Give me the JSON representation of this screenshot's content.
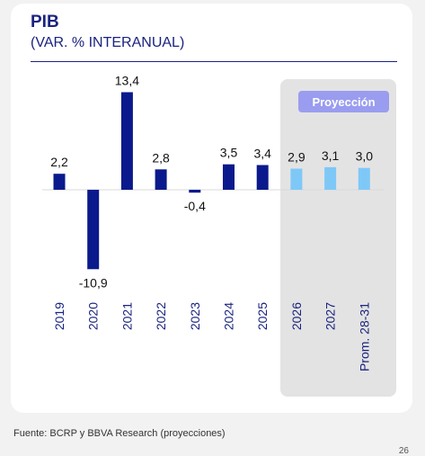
{
  "header": {
    "title": "PIB",
    "subtitle": "(VAR. % INTERANUAL)"
  },
  "projection_label": "Proyección",
  "footer": {
    "source": "Fuente: BCRP y BBVA Research (proyecciones)",
    "page_number": "26"
  },
  "colors": {
    "actual": "#0a1a8c",
    "projection": "#7ec8f8",
    "projection_band": "#e3e3e3",
    "badge": "#9a9cf0",
    "text": "#1a237e"
  },
  "chart_data": {
    "type": "bar",
    "title": "PIB",
    "subtitle": "(VAR. % INTERANUAL)",
    "categories": [
      "2019",
      "2020",
      "2021",
      "2022",
      "2023",
      "2024",
      "2025",
      "2026",
      "2027",
      "Prom. 28-31"
    ],
    "values": [
      2.2,
      -10.9,
      13.4,
      2.8,
      -0.4,
      3.5,
      3.4,
      2.9,
      3.1,
      3.0
    ],
    "value_labels": [
      "2,2",
      "-10,9",
      "13,4",
      "2,8",
      "-0,4",
      "3,5",
      "3,4",
      "2,9",
      "3,1",
      "3,0"
    ],
    "projected": [
      false,
      false,
      false,
      false,
      false,
      false,
      false,
      true,
      true,
      true
    ],
    "grid": false,
    "legend": "none"
  }
}
